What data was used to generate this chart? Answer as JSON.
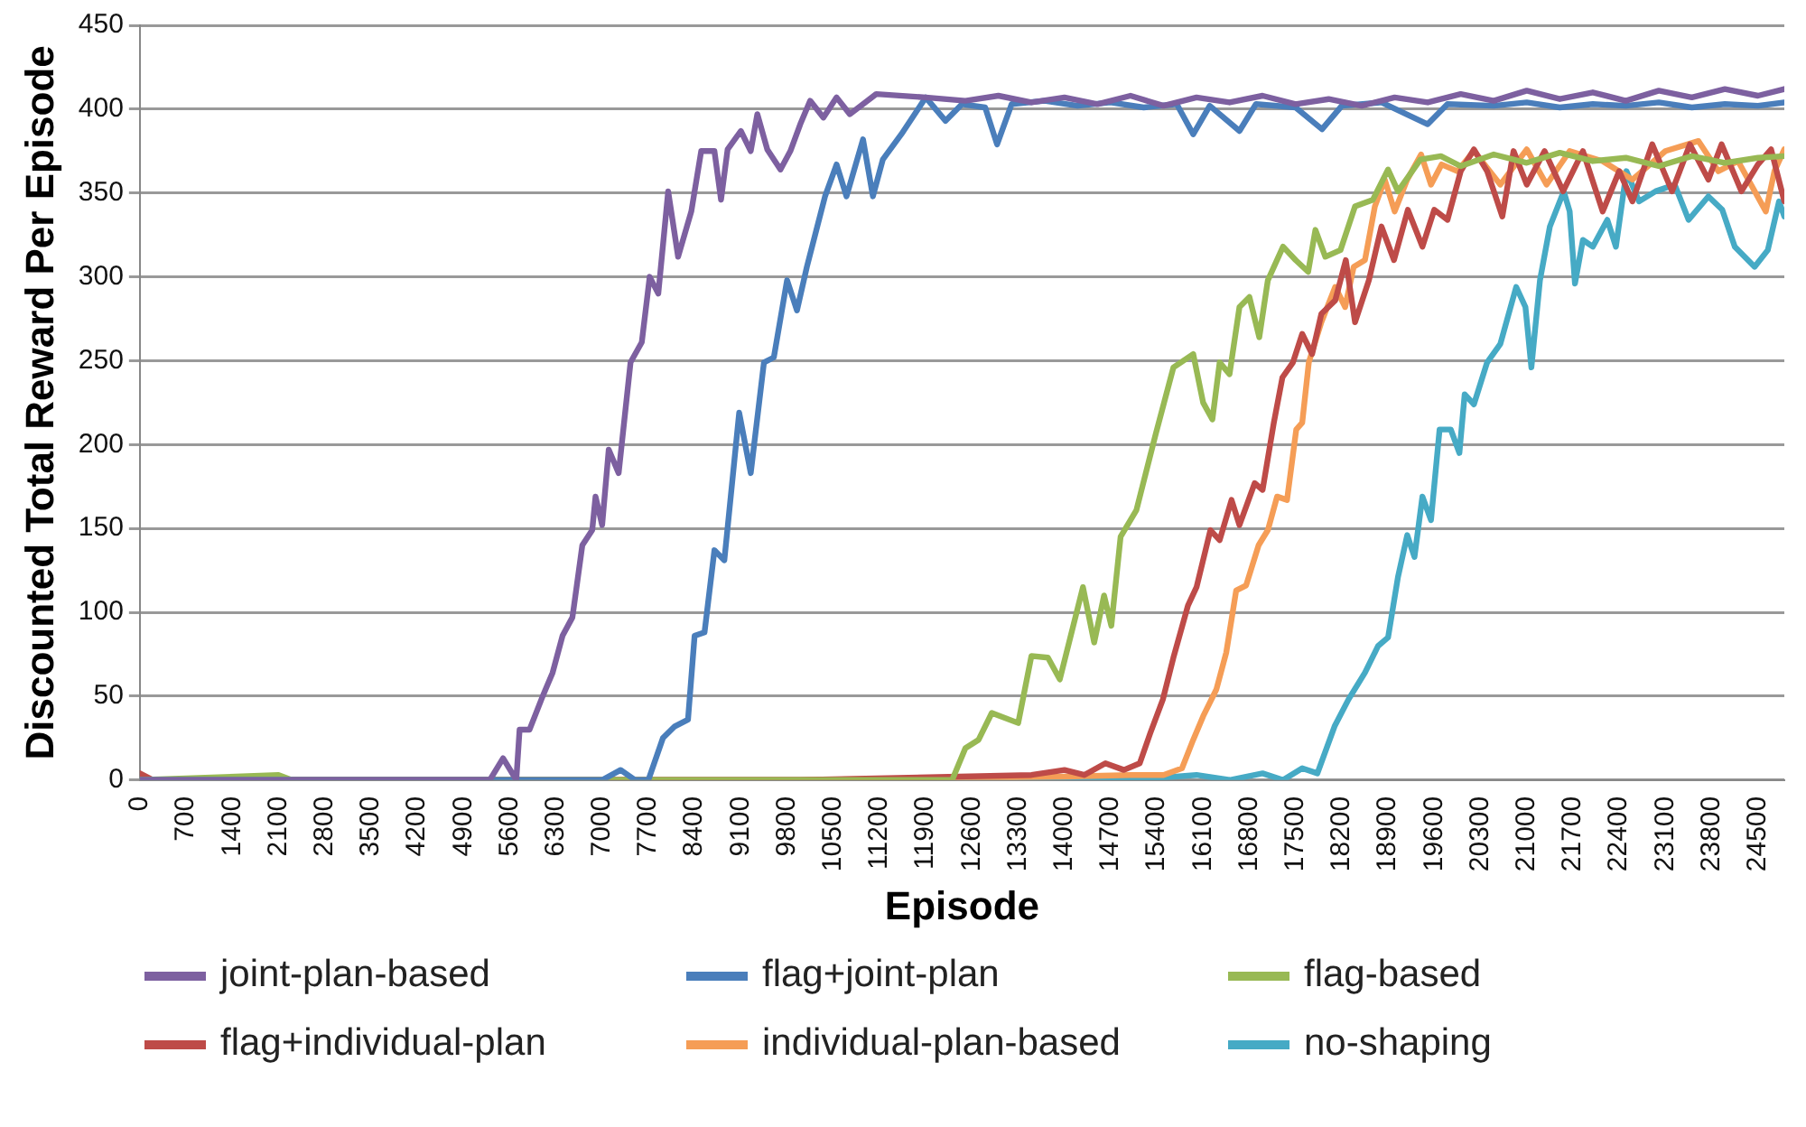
{
  "chart_data": {
    "type": "line",
    "xlabel": "Episode",
    "ylabel": "Discounted Total Reward Per Episode",
    "xlim": [
      0,
      24900
    ],
    "xticks": [
      0,
      700,
      1400,
      2100,
      2800,
      3500,
      4200,
      4900,
      5600,
      6300,
      7000,
      7700,
      8400,
      9100,
      9800,
      10500,
      11200,
      11900,
      12600,
      13300,
      14000,
      14700,
      15400,
      16100,
      16800,
      17500,
      18200,
      18900,
      19600,
      20300,
      21000,
      21700,
      22400,
      23100,
      23800,
      24500
    ],
    "ylim": [
      0,
      450
    ],
    "yticks": [
      0,
      50,
      100,
      150,
      200,
      250,
      300,
      350,
      400,
      450
    ],
    "grid": "y",
    "legend": "bottom",
    "marker": "none",
    "line_style": "solid",
    "series": [
      {
        "name": "joint-plan-based",
        "color": "#7d60a0",
        "x": [
          0,
          2000,
          4000,
          5300,
          5500,
          5700,
          5750,
          5900,
          6100,
          6250,
          6400,
          6550,
          6700,
          6850,
          6900,
          7000,
          7100,
          7250,
          7430,
          7600,
          7720,
          7850,
          8000,
          8150,
          8350,
          8500,
          8700,
          8800,
          8900,
          9100,
          9250,
          9350,
          9500,
          9700,
          9850,
          10000,
          10150,
          10350,
          10550,
          10750,
          11150,
          11900,
          12500,
          13000,
          13500,
          14000,
          14500,
          15000,
          15500,
          16000,
          16500,
          17000,
          17500,
          18000,
          18500,
          19000,
          19500,
          20000,
          20500,
          21000,
          21500,
          22000,
          22500,
          23000,
          23500,
          24000,
          24500,
          24900
        ],
        "values": [
          0,
          0,
          0,
          0,
          13,
          0,
          30,
          30,
          50,
          64,
          86,
          97,
          140,
          149,
          169,
          152,
          197,
          183,
          249,
          261,
          300,
          290,
          351,
          312,
          339,
          375,
          375,
          346,
          376,
          387,
          375,
          397,
          376,
          364,
          375,
          391,
          405,
          395,
          407,
          397,
          409,
          407,
          405,
          408,
          404,
          407,
          403,
          408,
          402,
          407,
          404,
          408,
          403,
          406,
          402,
          407,
          404,
          409,
          405,
          411,
          406,
          410,
          405,
          411,
          407,
          412,
          408,
          412
        ]
      },
      {
        "name": "flag+joint-plan",
        "color": "#4a7ebb",
        "x": [
          0,
          3000,
          6000,
          7000,
          7280,
          7500,
          7700,
          7920,
          8100,
          8300,
          8400,
          8550,
          8700,
          8850,
          9075,
          9250,
          9450,
          9600,
          9800,
          9950,
          10100,
          10375,
          10550,
          10700,
          10950,
          11100,
          11250,
          11530,
          11900,
          12200,
          12450,
          12800,
          12980,
          13200,
          13700,
          14200,
          14700,
          15200,
          15700,
          15950,
          16200,
          16650,
          16900,
          17500,
          17900,
          18200,
          18800,
          19500,
          19800,
          20500,
          21000,
          21500,
          22000,
          22500,
          23000,
          23500,
          24000,
          24500,
          24900
        ],
        "values": [
          0,
          0,
          0,
          0,
          6,
          0,
          0,
          25,
          32,
          36,
          86,
          88,
          137,
          131,
          219,
          183,
          249,
          252,
          298,
          280,
          306,
          348,
          367,
          348,
          382,
          348,
          370,
          385,
          407,
          393,
          403,
          401,
          379,
          403,
          405,
          402,
          404,
          401,
          403,
          385,
          402,
          387,
          403,
          401,
          388,
          402,
          404,
          391,
          403,
          402,
          404,
          401,
          403,
          402,
          404,
          401,
          403,
          402,
          404
        ]
      },
      {
        "name": "flag-based",
        "color": "#98b954",
        "x": [
          0,
          2100,
          2300,
          6000,
          9000,
          12000,
          12300,
          12500,
          12700,
          12900,
          13300,
          13500,
          13750,
          13930,
          14280,
          14450,
          14600,
          14710,
          14850,
          15090,
          15380,
          15650,
          15950,
          16100,
          16240,
          16350,
          16500,
          16650,
          16800,
          16950,
          17080,
          17310,
          17500,
          17690,
          17800,
          17950,
          18180,
          18400,
          18670,
          18900,
          19050,
          19390,
          19700,
          20000,
          20500,
          21000,
          21500,
          22000,
          22500,
          23000,
          23500,
          24000,
          24500,
          24900
        ],
        "values": [
          0,
          3,
          0,
          0,
          0,
          0,
          0,
          19,
          24,
          40,
          34,
          74,
          73,
          60,
          115,
          82,
          110,
          92,
          145,
          161,
          206,
          246,
          254,
          225,
          215,
          249,
          242,
          282,
          288,
          264,
          298,
          318,
          310,
          303,
          328,
          312,
          316,
          342,
          346,
          364,
          351,
          370,
          372,
          366,
          373,
          368,
          374,
          369,
          371,
          366,
          372,
          368,
          371,
          372
        ]
      },
      {
        "name": "flag+individual-plan",
        "color": "#be4b48",
        "x": [
          0,
          200,
          5000,
          10000,
          13500,
          14000,
          14300,
          14620,
          14900,
          15140,
          15300,
          15490,
          15650,
          15870,
          16000,
          16210,
          16350,
          16530,
          16650,
          16880,
          17000,
          17170,
          17300,
          17460,
          17600,
          17750,
          17890,
          18100,
          18260,
          18400,
          18610,
          18800,
          18990,
          19200,
          19420,
          19600,
          19800,
          20000,
          20200,
          20400,
          20630,
          20800,
          21000,
          21270,
          21550,
          21850,
          22150,
          22400,
          22600,
          22900,
          23200,
          23470,
          23750,
          23950,
          24250,
          24500,
          24700,
          24900
        ],
        "values": [
          4,
          0,
          0,
          0,
          3,
          6,
          3,
          10,
          6,
          10,
          28,
          48,
          73,
          104,
          115,
          149,
          143,
          167,
          152,
          177,
          173,
          213,
          240,
          249,
          266,
          254,
          278,
          286,
          310,
          273,
          298,
          330,
          310,
          340,
          318,
          340,
          334,
          363,
          376,
          363,
          336,
          375,
          355,
          375,
          351,
          375,
          339,
          363,
          345,
          379,
          351,
          379,
          358,
          379,
          351,
          367,
          376,
          345
        ]
      },
      {
        "name": "individual-plan-based",
        "color": "#f59d56",
        "x": [
          0,
          5000,
          10000,
          14000,
          15000,
          15500,
          15780,
          15950,
          16100,
          16300,
          16450,
          16600,
          16750,
          16940,
          17080,
          17220,
          17370,
          17510,
          17600,
          17700,
          17890,
          18100,
          18250,
          18380,
          18550,
          18700,
          18850,
          19000,
          19190,
          19400,
          19550,
          19710,
          19950,
          20200,
          20600,
          21000,
          21300,
          21650,
          22150,
          22600,
          23100,
          23600,
          23900,
          24200,
          24620,
          24750,
          24900
        ],
        "values": [
          0,
          0,
          0,
          2,
          3,
          3,
          7,
          24,
          38,
          54,
          76,
          113,
          116,
          140,
          149,
          169,
          167,
          209,
          213,
          249,
          273,
          294,
          282,
          306,
          310,
          342,
          358,
          339,
          358,
          373,
          355,
          367,
          363,
          375,
          355,
          376,
          355,
          375,
          369,
          358,
          375,
          381,
          363,
          369,
          339,
          363,
          376
        ]
      },
      {
        "name": "no-shaping",
        "color": "#46aac5",
        "x": [
          0,
          5000,
          10000,
          15000,
          16000,
          16500,
          17000,
          17310,
          17600,
          17830,
          18090,
          18300,
          18550,
          18750,
          18900,
          19050,
          19190,
          19300,
          19420,
          19550,
          19680,
          19850,
          19980,
          20060,
          20200,
          20400,
          20600,
          20840,
          20980,
          21070,
          21200,
          21350,
          21560,
          21650,
          21730,
          21850,
          22000,
          22220,
          22350,
          22510,
          22700,
          22950,
          23240,
          23450,
          23750,
          23960,
          24150,
          24450,
          24650,
          24820,
          24900
        ],
        "values": [
          0,
          0,
          0,
          0,
          3,
          0,
          4,
          0,
          7,
          4,
          32,
          48,
          64,
          80,
          85,
          121,
          146,
          133,
          169,
          155,
          209,
          209,
          195,
          230,
          224,
          249,
          260,
          294,
          282,
          246,
          298,
          330,
          351,
          339,
          296,
          322,
          318,
          334,
          318,
          363,
          345,
          351,
          355,
          334,
          348,
          340,
          318,
          306,
          316,
          345,
          336
        ]
      }
    ]
  }
}
